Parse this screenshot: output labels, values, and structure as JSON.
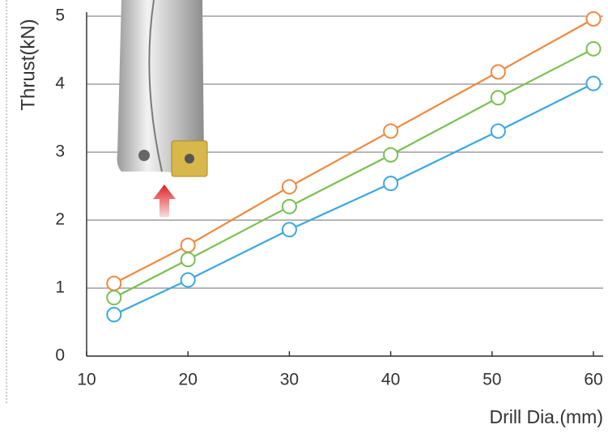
{
  "chart_data": {
    "type": "line",
    "y_label": "Thrust(kN)",
    "x_label": "Drill Dia.(mm)",
    "x": [
      12.7,
      20,
      30,
      40,
      50.6,
      60
    ],
    "series": [
      {
        "color": "#f0883e",
        "values": [
          1.07,
          1.63,
          2.49,
          3.31,
          4.18,
          4.96
        ]
      },
      {
        "color": "#78c050",
        "values": [
          0.86,
          1.42,
          2.2,
          2.96,
          3.8,
          4.52
        ]
      },
      {
        "color": "#3aa8e0",
        "values": [
          0.61,
          1.12,
          1.86,
          2.54,
          3.31,
          4.01
        ]
      }
    ],
    "xlim": [
      10,
      60
    ],
    "xticks": [
      10,
      20,
      30,
      40,
      50,
      60
    ],
    "ylim": [
      0,
      5
    ],
    "yticks": [
      0,
      1,
      2,
      3,
      4,
      5
    ],
    "grid": true
  }
}
